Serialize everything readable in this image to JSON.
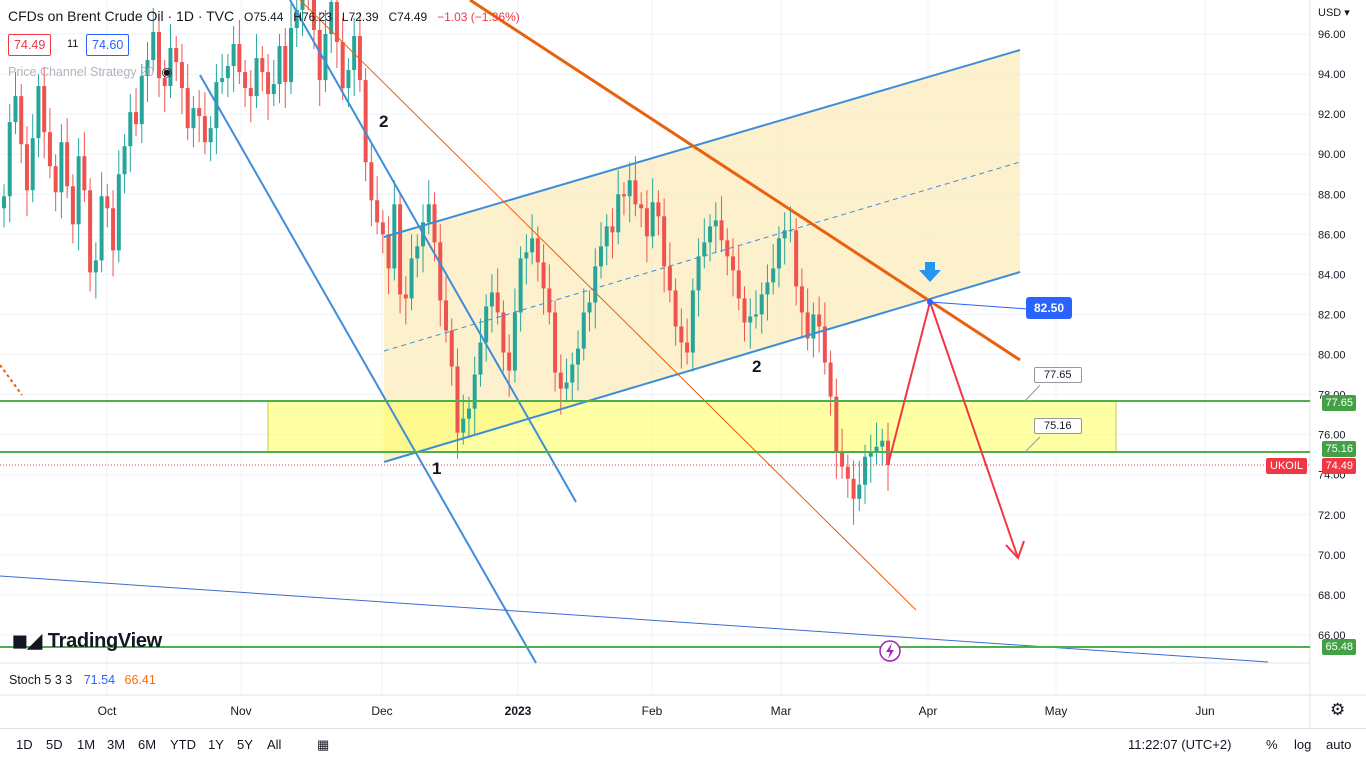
{
  "legend": {
    "title": "CFDs on Brent Crude Oil · 1D · TVC",
    "open": "O75.44",
    "high": "H76.23",
    "low": "L72.39",
    "close": "C74.49",
    "change": "−1.03 (−1.36%)",
    "bid": "74.49",
    "spread": "11",
    "ask": "74.60",
    "indicator": "Price Channel Strategy 20"
  },
  "currency": "USD",
  "logo": "TradingView",
  "stoch": {
    "label": "Stoch 5 3 3",
    "k": "71.54",
    "d": "66.41"
  },
  "symbol_tag": "UKOIL",
  "annotations": {
    "target_price": "82.50",
    "zone_top": "77.65",
    "zone_bottom": "75.16",
    "wave_labels": [
      "2",
      "1",
      "2"
    ]
  },
  "toolbar": {
    "timeframes": [
      "1D",
      "5D",
      "1M",
      "3M",
      "6M",
      "YTD",
      "1Y",
      "5Y",
      "All"
    ],
    "clock": "11:22:07 (UTC+2)",
    "percent": "%",
    "log": "log",
    "auto": "auto"
  },
  "colors": {
    "up": "#26a69a",
    "down": "#ef5350",
    "channel": "#3d8ed8",
    "resistance": "#e8610d",
    "zone": "#ffff8a",
    "level": "#4caf50"
  },
  "chart_data": {
    "type": "candlestick",
    "title": "CFDs on Brent Crude Oil · 1D · TVC",
    "ylim": [
      64.5,
      97
    ],
    "y_ticks": [
      66,
      68,
      70,
      72,
      74,
      76,
      78,
      80,
      82,
      84,
      86,
      88,
      90,
      92,
      94,
      96
    ],
    "x_ticks": [
      "Oct",
      "Nov",
      "Dec",
      "2023",
      "Feb",
      "Mar",
      "Apr",
      "May",
      "Jun"
    ],
    "horizontal_levels": [
      {
        "value": 77.65,
        "label": "77.65"
      },
      {
        "value": 75.16,
        "label": "75.16"
      },
      {
        "value": 65.48,
        "label": "65.48"
      }
    ],
    "last_price": 74.49,
    "projection": {
      "peak": 82.5,
      "target": 70.0
    },
    "candles_close": [
      87.9,
      91.6,
      92.9,
      90.5,
      88.2,
      90.8,
      93.4,
      91.1,
      89.4,
      88.1,
      90.6,
      88.4,
      86.5,
      89.9,
      88.2,
      84.1,
      84.7,
      87.9,
      87.3,
      85.2,
      89.0,
      90.4,
      92.1,
      91.5,
      93.9,
      94.7,
      96.1,
      93.8,
      93.4,
      95.3,
      94.6,
      93.3,
      91.3,
      92.3,
      91.9,
      90.6,
      91.3,
      93.6,
      93.8,
      94.4,
      95.5,
      94.1,
      93.3,
      92.9,
      94.8,
      94.1,
      93.0,
      93.5,
      95.4,
      93.6,
      96.3,
      97.2,
      97.9,
      97.8,
      96.2,
      93.7,
      96.0,
      97.6,
      95.6,
      93.3,
      94.2,
      95.9,
      93.7,
      89.6,
      87.7,
      86.6,
      86.0,
      84.3,
      87.5,
      83.0,
      82.8,
      84.8,
      85.4,
      86.6,
      87.5,
      85.6,
      82.7,
      81.2,
      79.4,
      76.1,
      76.8,
      77.3,
      79.0,
      80.6,
      82.4,
      83.1,
      82.1,
      80.1,
      79.2,
      82.1,
      84.8,
      85.1,
      85.8,
      84.6,
      83.3,
      82.1,
      79.1,
      78.3,
      78.6,
      79.5,
      80.3,
      82.1,
      82.6,
      84.4,
      85.4,
      86.4,
      86.1,
      88.0,
      87.9,
      88.7,
      87.5,
      87.3,
      85.9,
      87.6,
      86.9,
      84.4,
      83.2,
      81.4,
      80.6,
      80.1,
      83.2,
      84.9,
      85.6,
      86.4,
      86.7,
      85.7,
      84.9,
      84.2,
      82.8,
      81.6,
      81.9,
      82.0,
      83.0,
      83.6,
      84.3,
      85.8,
      86.2,
      86.2,
      83.4,
      82.1,
      80.8,
      82.0,
      81.4,
      79.6,
      77.9,
      75.1,
      74.4,
      73.8,
      72.8,
      73.5,
      74.9,
      75.1,
      75.4,
      75.7,
      74.49
    ]
  }
}
